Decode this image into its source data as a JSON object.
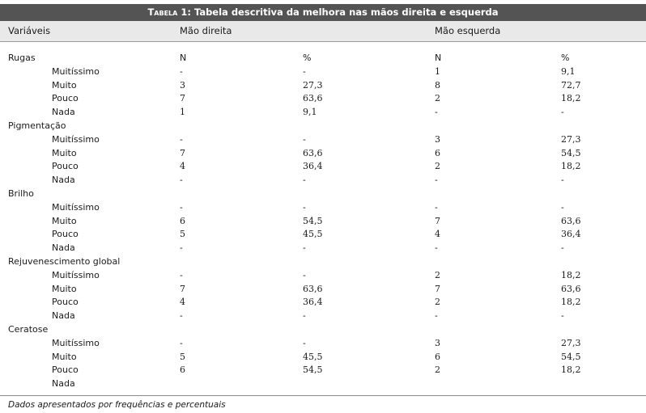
{
  "table": {
    "title_prefix": "Tabela 1:",
    "title_text": " Tabela descritiva da melhora nas mãos direita e esquerda",
    "headers": [
      "Variáveis",
      "Mão direita",
      "Mão esquerda"
    ],
    "groups": [
      {
        "label": "Rugas",
        "col_labels": [
          "N",
          "%",
          "N",
          "%"
        ],
        "rows": [
          {
            "label": "Muitíssimo",
            "n_r": "-",
            "p_r": "-",
            "n_l": "1",
            "p_l": "9,1"
          },
          {
            "label": "Muito",
            "n_r": "3",
            "p_r": "27,3",
            "n_l": "8",
            "p_l": "72,7"
          },
          {
            "label": "Pouco",
            "n_r": "7",
            "p_r": "63,6",
            "n_l": "2",
            "p_l": "18,2"
          },
          {
            "label": "Nada",
            "n_r": "1",
            "p_r": "9,1",
            "n_l": "-",
            "p_l": "-"
          }
        ]
      },
      {
        "label": "Pigmentação",
        "rows": [
          {
            "label": "Muitíssimo",
            "n_r": "-",
            "p_r": "-",
            "n_l": "3",
            "p_l": "27,3"
          },
          {
            "label": "Muito",
            "n_r": "7",
            "p_r": "63,6",
            "n_l": "6",
            "p_l": "54,5"
          },
          {
            "label": "Pouco",
            "n_r": "4",
            "p_r": "36,4",
            "n_l": "2",
            "p_l": "18,2"
          },
          {
            "label": "Nada",
            "n_r": "-",
            "p_r": "-",
            "n_l": "-",
            "p_l": "-"
          }
        ]
      },
      {
        "label": "Brilho",
        "rows": [
          {
            "label": "Muitíssimo",
            "n_r": "-",
            "p_r": "-",
            "n_l": "-",
            "p_l": "-"
          },
          {
            "label": "Muito",
            "n_r": "6",
            "p_r": "54,5",
            "n_l": "7",
            "p_l": "63,6"
          },
          {
            "label": "Pouco",
            "n_r": "5",
            "p_r": "45,5",
            "n_l": "4",
            "p_l": "36,4"
          },
          {
            "label": "Nada",
            "n_r": "-",
            "p_r": "-",
            "n_l": "-",
            "p_l": "-"
          }
        ]
      },
      {
        "label": "Rejuvenescimento global",
        "rows": [
          {
            "label": "Muitíssimo",
            "n_r": "-",
            "p_r": "-",
            "n_l": "2",
            "p_l": "18,2"
          },
          {
            "label": "Muito",
            "n_r": "7",
            "p_r": "63,6",
            "n_l": "7",
            "p_l": "63,6"
          },
          {
            "label": "Pouco",
            "n_r": "4",
            "p_r": "36,4",
            "n_l": "2",
            "p_l": "18,2"
          },
          {
            "label": "Nada",
            "n_r": "-",
            "p_r": "-",
            "n_l": "-",
            "p_l": "-"
          }
        ]
      },
      {
        "label": "Ceratose",
        "rows": [
          {
            "label": "Muitíssimo",
            "n_r": "-",
            "p_r": "-",
            "n_l": "3",
            "p_l": "27,3"
          },
          {
            "label": "Muito",
            "n_r": "5",
            "p_r": "45,5",
            "n_l": "6",
            "p_l": "54,5"
          },
          {
            "label": "Pouco",
            "n_r": "6",
            "p_r": "54,5",
            "n_l": "2",
            "p_l": "18,2"
          },
          {
            "label": "Nada",
            "n_r": "",
            "p_r": "",
            "n_l": "",
            "p_l": ""
          }
        ]
      }
    ],
    "footnote": "Dados apresentados por frequências e percentuais"
  }
}
